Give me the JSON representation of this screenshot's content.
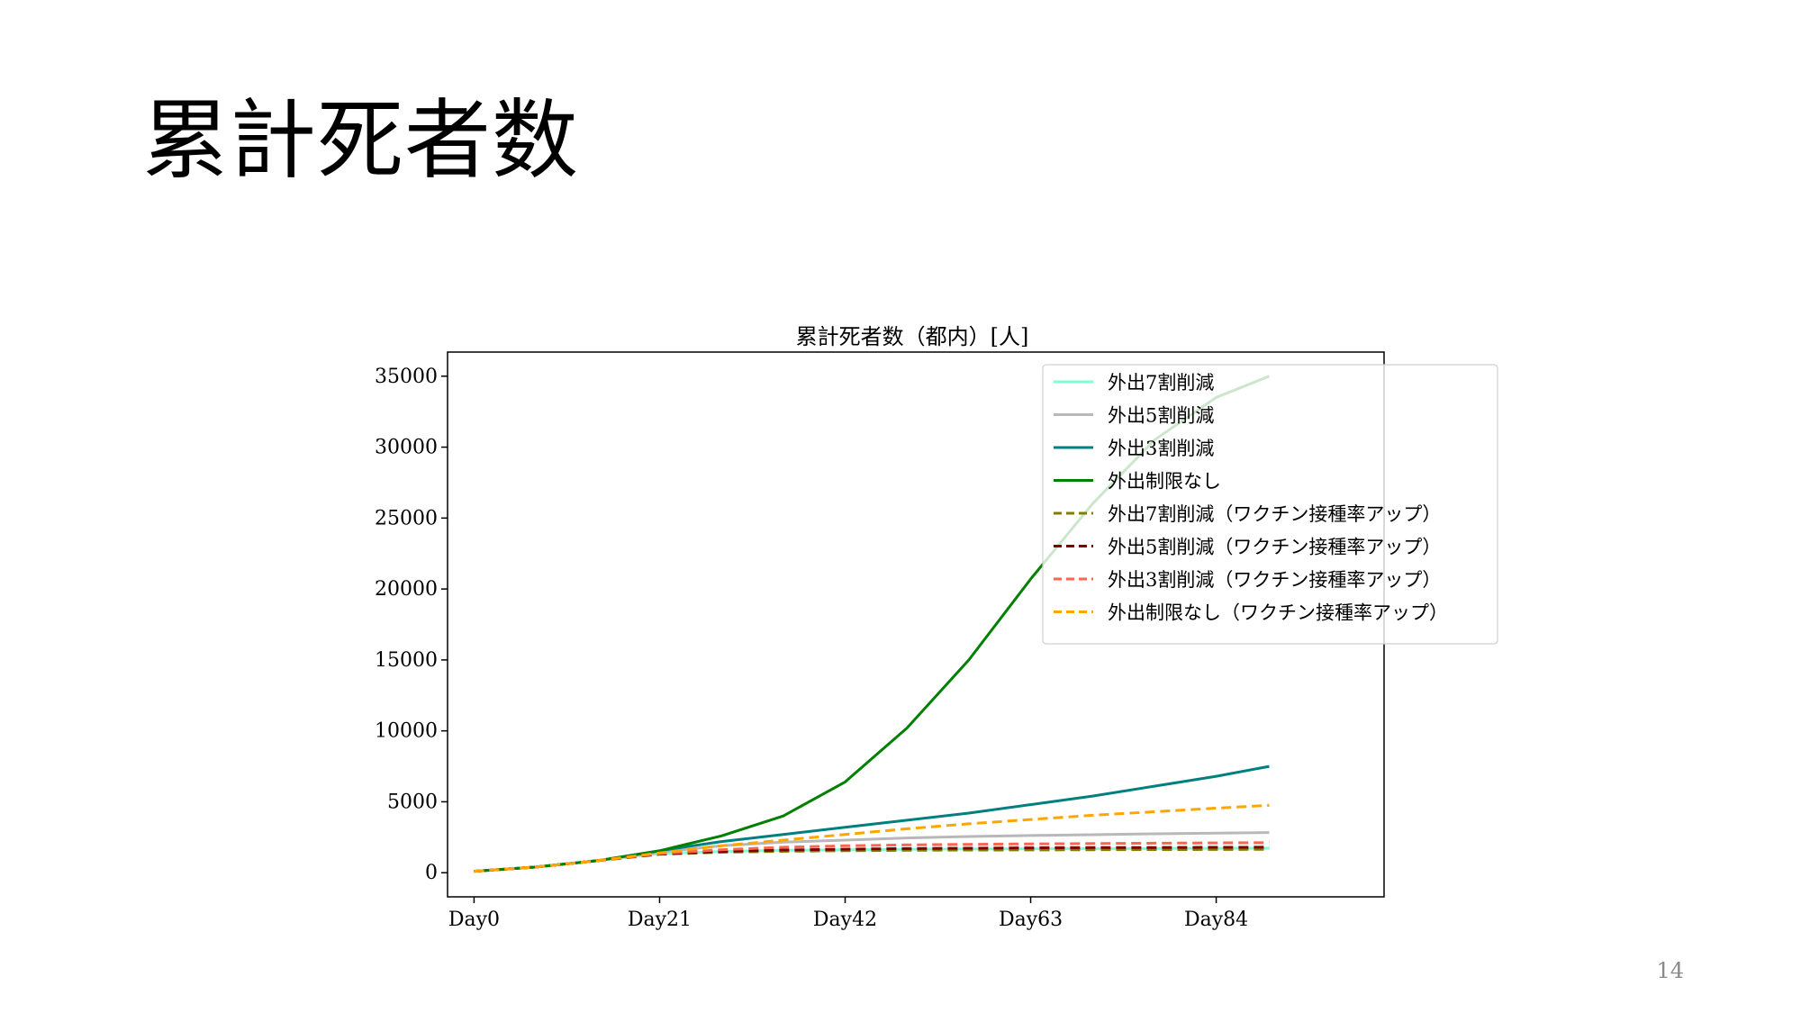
{
  "slide": {
    "title": "累計死者数",
    "page_number": "14"
  },
  "chart_data": {
    "type": "line",
    "title": "累計死者数（都内）[人]",
    "xlabel": "",
    "ylabel": "",
    "xlim": [
      -3,
      103
    ],
    "ylim": [
      -1700,
      36700
    ],
    "x_ticks": [
      0,
      21,
      42,
      63,
      84
    ],
    "x_tick_labels": [
      "Day0",
      "Day21",
      "Day42",
      "Day63",
      "Day84"
    ],
    "y_ticks": [
      0,
      5000,
      10000,
      15000,
      20000,
      25000,
      30000,
      35000
    ],
    "y_tick_labels": [
      "0",
      "5000",
      "10000",
      "15000",
      "20000",
      "25000",
      "30000",
      "35000"
    ],
    "grid": false,
    "legend_position": "top-right",
    "x": [
      0,
      7,
      14,
      21,
      28,
      35,
      42,
      49,
      56,
      63,
      70,
      77,
      84,
      90
    ],
    "series": [
      {
        "name": "外出7割削減",
        "color": "#7fffd4",
        "dash": "solid",
        "values": [
          100,
          400,
          850,
          1350,
          1500,
          1580,
          1620,
          1650,
          1670,
          1690,
          1700,
          1710,
          1720,
          1730
        ]
      },
      {
        "name": "外出5割削減",
        "color": "#b8b8b8",
        "dash": "solid",
        "values": [
          100,
          400,
          850,
          1450,
          1900,
          2150,
          2300,
          2450,
          2550,
          2620,
          2680,
          2740,
          2790,
          2830
        ]
      },
      {
        "name": "外出3割削減",
        "color": "#007f7f",
        "dash": "solid",
        "values": [
          100,
          400,
          850,
          1550,
          2200,
          2700,
          3200,
          3700,
          4200,
          4800,
          5400,
          6100,
          6800,
          7500
        ]
      },
      {
        "name": "外出制限なし",
        "color": "#008000",
        "dash": "solid",
        "values": [
          100,
          400,
          850,
          1550,
          2600,
          4000,
          6400,
          10200,
          15000,
          20700,
          26000,
          30500,
          33500,
          35000
        ]
      },
      {
        "name": "外出7割削減（ワクチン接種率アップ）",
        "color": "#808000",
        "dash": "dashed",
        "values": [
          100,
          400,
          850,
          1300,
          1440,
          1510,
          1550,
          1580,
          1600,
          1610,
          1620,
          1630,
          1640,
          1650
        ]
      },
      {
        "name": "外出5割削減（ワクチン接種率アップ）",
        "color": "#800000",
        "dash": "dashed",
        "values": [
          100,
          400,
          850,
          1320,
          1500,
          1600,
          1660,
          1700,
          1730,
          1750,
          1770,
          1780,
          1790,
          1800
        ]
      },
      {
        "name": "外出3割削減（ワクチン接種率アップ）",
        "color": "#fa6650",
        "dash": "dashed",
        "values": [
          100,
          400,
          850,
          1350,
          1620,
          1800,
          1900,
          1960,
          2000,
          2030,
          2060,
          2080,
          2100,
          2120
        ]
      },
      {
        "name": "外出制限なし（ワクチン接種率アップ）",
        "color": "#ffa500",
        "dash": "dashed",
        "values": [
          100,
          400,
          850,
          1400,
          1900,
          2300,
          2700,
          3100,
          3450,
          3750,
          4050,
          4300,
          4550,
          4750
        ]
      }
    ]
  }
}
